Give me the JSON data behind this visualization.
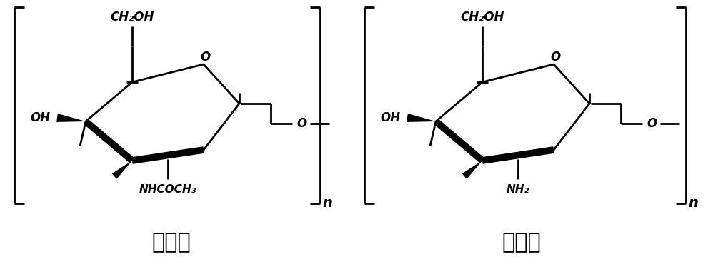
{
  "background_color": "#ffffff",
  "label1": "甲壳素",
  "label2": "壳聚糖",
  "ch2oh_label": "CH₂OH",
  "oh_label": "OH",
  "o_label": "O",
  "nhcoch3_label": "NHCOCH₃",
  "nh2_label": "NH₂",
  "n_label": "n",
  "figsize": [
    9.91,
    3.67
  ],
  "dpi": 100
}
